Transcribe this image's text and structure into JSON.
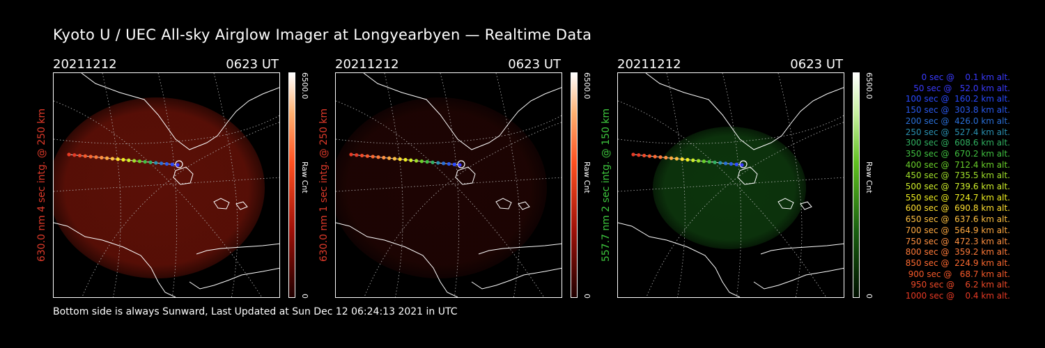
{
  "title": "Kyoto U / UEC All-sky Airglow Imager at Longyearbyen — Realtime Data",
  "panels": [
    {
      "date": "20211212",
      "time": "0623 UT",
      "side_label": "630.0 nm 4 sec intg. @ 250 km",
      "side_color": "#e03a2a",
      "cbar_max": "6500.0",
      "cbar_min": "0",
      "cbar_unit": "Raw Cnt",
      "glow_color": "#6a1208",
      "glow_opacity": 0.85
    },
    {
      "date": "20211212",
      "time": "0623 UT",
      "side_label": "630.0 nm 1 sec intg. @ 250 km",
      "side_color": "#e03a2a",
      "cbar_max": "6500.0",
      "cbar_min": "0",
      "cbar_unit": "Raw Cnt",
      "glow_color": "#2a0604",
      "glow_opacity": 0.7
    },
    {
      "date": "20211212",
      "time": "0623 UT",
      "side_label": "557.7 nm 2 sec intg. @ 150 km",
      "side_color": "#3ec83e",
      "cbar_max": "6500.0",
      "cbar_min": "0",
      "cbar_unit": "Raw Cnt",
      "glow_color": "#0e3a0e",
      "glow_opacity": 0.9
    }
  ],
  "legend": [
    {
      "text": "   0 sec @    0.1 km alt.",
      "color": "#3a3aff"
    },
    {
      "text": "  50 sec @   52.0 km alt.",
      "color": "#3a3aff"
    },
    {
      "text": " 100 sec @  160.2 km alt.",
      "color": "#2a4aff"
    },
    {
      "text": " 150 sec @  303.8 km alt.",
      "color": "#2a5aee"
    },
    {
      "text": " 200 sec @  426.0 km alt.",
      "color": "#2a70d8"
    },
    {
      "text": " 250 sec @  527.4 km alt.",
      "color": "#2a90b0"
    },
    {
      "text": " 300 sec @  608.6 km alt.",
      "color": "#30b060"
    },
    {
      "text": " 350 sec @  670.2 km alt.",
      "color": "#40c040"
    },
    {
      "text": " 400 sec @  712.4 km alt.",
      "color": "#6ad02a"
    },
    {
      "text": " 450 sec @  735.5 km alt.",
      "color": "#a0e02a"
    },
    {
      "text": " 500 sec @  739.6 km alt.",
      "color": "#d0f02a"
    },
    {
      "text": " 550 sec @  724.7 km alt.",
      "color": "#f0f020"
    },
    {
      "text": " 600 sec @  690.8 km alt.",
      "color": "#ffe030"
    },
    {
      "text": " 650 sec @  637.6 km alt.",
      "color": "#ffc040"
    },
    {
      "text": " 700 sec @  564.9 km alt.",
      "color": "#ffa840"
    },
    {
      "text": " 750 sec @  472.3 km alt.",
      "color": "#ff9040"
    },
    {
      "text": " 800 sec @  359.2 km alt.",
      "color": "#ff7a38"
    },
    {
      "text": " 850 sec @  224.9 km alt.",
      "color": "#ff6a30"
    },
    {
      "text": " 900 sec @   68.7 km alt.",
      "color": "#f85a2a"
    },
    {
      "text": " 950 sec @    6.2 km alt.",
      "color": "#f04a28"
    },
    {
      "text": "1000 sec @    0.4 km alt.",
      "color": "#e83a24"
    }
  ],
  "track_colors": [
    "#3a3aff",
    "#2a4aff",
    "#2a5aee",
    "#2a70d8",
    "#2a90b0",
    "#30b060",
    "#40c040",
    "#6ad02a",
    "#a0e02a",
    "#d0f02a",
    "#f0f020",
    "#ffe030",
    "#ffc040",
    "#ffa840",
    "#ff9040",
    "#ff7a38",
    "#ff6a30",
    "#f85a2a",
    "#f04a28",
    "#e83a24"
  ],
  "footer": "Bottom side is always Sunward, Last Updated at Sun Dec 12 06:24:13 2021 in UTC"
}
